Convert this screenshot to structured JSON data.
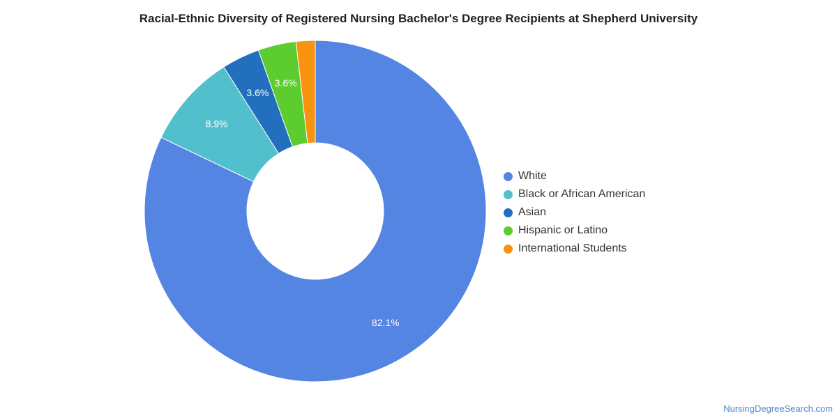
{
  "chart_data": {
    "type": "pie",
    "title": "Racial-Ethnic Diversity of Registered Nursing Bachelor's Degree Recipients at Shepherd University",
    "donut": true,
    "legend_position": "right",
    "slices": [
      {
        "label": "White",
        "value": 82.1,
        "display": "82.1%",
        "color": "#5585e2"
      },
      {
        "label": "Black or African American",
        "value": 8.9,
        "display": "8.9%",
        "color": "#52c0cc"
      },
      {
        "label": "Asian",
        "value": 3.6,
        "display": "3.6%",
        "color": "#2270bd"
      },
      {
        "label": "Hispanic or Latino",
        "value": 3.6,
        "display": "3.6%",
        "color": "#5dcc2f"
      },
      {
        "label": "International Students",
        "value": 1.8,
        "display": "",
        "color": "#f7930f"
      }
    ]
  },
  "watermark": "NursingDegreeSearch.com"
}
